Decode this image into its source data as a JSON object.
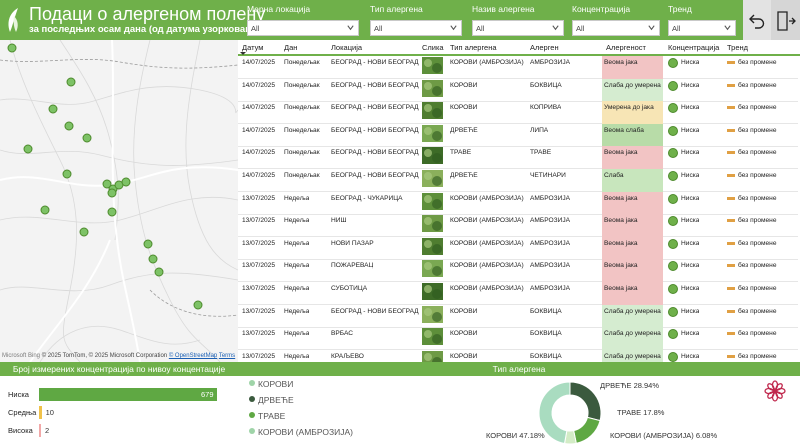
{
  "header": {
    "title": "Подаци о алергеном полену",
    "subtitle": "за последњих осам дана (од датума узорковања)"
  },
  "filters": [
    {
      "label": "Мерна локација",
      "value": "All"
    },
    {
      "label": "Тип алергена",
      "value": "All"
    },
    {
      "label": "Назив алергена",
      "value": "All"
    },
    {
      "label": "Концентрација",
      "value": "All"
    },
    {
      "label": "Тренд",
      "value": "All"
    }
  ],
  "map": {
    "attribution": "© 2025 TomTom, © 2025 Microsoft Corporation",
    "openstreetmap": "© OpenStreetMap",
    "terms": "Terms",
    "brand": "Microsoft Bing"
  },
  "table": {
    "columns": [
      "Датум",
      "Дан",
      "Локација",
      "Слика",
      "Тип алергена",
      "Алерген",
      "Алергеност",
      "Концентрација",
      "Тренд"
    ],
    "rows": [
      {
        "date": "14/07/2025",
        "day": "Понедељак",
        "location": "БЕОГРАД - НОВИ БЕОГРАД",
        "type": "КОРОВИ (АМБРОЗИЈА)",
        "allergen": "АМБРОЗИЈА",
        "allergenicity": "Веома јака",
        "aller_color": "#f2c4c4",
        "conc": "Ниска",
        "trend": "без промене"
      },
      {
        "date": "14/07/2025",
        "day": "Понедељак",
        "location": "БЕОГРАД - НОВИ БЕОГРАД",
        "type": "КОРОВИ",
        "allergen": "БОКВИЦА",
        "allergenicity": "Слаба до умерена",
        "aller_color": "#d5ecd0",
        "conc": "Ниска",
        "trend": "без промене"
      },
      {
        "date": "14/07/2025",
        "day": "Понедељак",
        "location": "БЕОГРАД - НОВИ БЕОГРАД",
        "type": "КОРОВИ",
        "allergen": "КОПРИВА",
        "allergenicity": "Умерена до јака",
        "aller_color": "#f7e5b5",
        "conc": "Ниска",
        "trend": "без промене"
      },
      {
        "date": "14/07/2025",
        "day": "Понедељак",
        "location": "БЕОГРАД - НОВИ БЕОГРАД",
        "type": "ДРВЕЋЕ",
        "allergen": "ЛИПА",
        "allergenicity": "Веома слаба",
        "aller_color": "#b8dca8",
        "conc": "Ниска",
        "trend": "без промене"
      },
      {
        "date": "14/07/2025",
        "day": "Понедељак",
        "location": "БЕОГРАД - НОВИ БЕОГРАД",
        "type": "ТРАВЕ",
        "allergen": "ТРАВЕ",
        "allergenicity": "Веома јака",
        "aller_color": "#f2c4c4",
        "conc": "Ниска",
        "trend": "без промене"
      },
      {
        "date": "14/07/2025",
        "day": "Понедељак",
        "location": "БЕОГРАД - НОВИ БЕОГРАД",
        "type": "ДРВЕЋЕ",
        "allergen": "ЧЕТИНАРИ",
        "allergenicity": "Слаба",
        "aller_color": "#c8e6bd",
        "conc": "Ниска",
        "trend": "без промене"
      },
      {
        "date": "13/07/2025",
        "day": "Недеља",
        "location": "БЕОГРАД - ЧУКАРИЦА",
        "type": "КОРОВИ (АМБРОЗИЈА)",
        "allergen": "АМБРОЗИЈА",
        "allergenicity": "Веома јака",
        "aller_color": "#f2c4c4",
        "conc": "Ниска",
        "trend": "без промене"
      },
      {
        "date": "13/07/2025",
        "day": "Недеља",
        "location": "НИШ",
        "type": "КОРОВИ (АМБРОЗИЈА)",
        "allergen": "АМБРОЗИЈА",
        "allergenicity": "Веома јака",
        "aller_color": "#f2c4c4",
        "conc": "Ниска",
        "trend": "без промене"
      },
      {
        "date": "13/07/2025",
        "day": "Недеља",
        "location": "НОВИ ПАЗАР",
        "type": "КОРОВИ (АМБРОЗИЈА)",
        "allergen": "АМБРОЗИЈА",
        "allergenicity": "Веома јака",
        "aller_color": "#f2c4c4",
        "conc": "Ниска",
        "trend": "без промене"
      },
      {
        "date": "13/07/2025",
        "day": "Недеља",
        "location": "ПОЖАРЕВАЦ",
        "type": "КОРОВИ (АМБРОЗИЈА)",
        "allergen": "АМБРОЗИЈА",
        "allergenicity": "Веома јака",
        "aller_color": "#f2c4c4",
        "conc": "Ниска",
        "trend": "без промене"
      },
      {
        "date": "13/07/2025",
        "day": "Недеља",
        "location": "СУБОТИЦА",
        "type": "КОРОВИ (АМБРОЗИЈА)",
        "allergen": "АМБРОЗИЈА",
        "allergenicity": "Веома јака",
        "aller_color": "#f2c4c4",
        "conc": "Ниска",
        "trend": "без промене"
      },
      {
        "date": "13/07/2025",
        "day": "Недеља",
        "location": "БЕОГРАД - НОВИ БЕОГРАД",
        "type": "КОРОВИ",
        "allergen": "БОКВИЦА",
        "allergenicity": "Слаба до умерена",
        "aller_color": "#d5ecd0",
        "conc": "Ниска",
        "trend": "без промене"
      },
      {
        "date": "13/07/2025",
        "day": "Недеља",
        "location": "ВРБАС",
        "type": "КОРОВИ",
        "allergen": "БОКВИЦА",
        "allergenicity": "Слаба до умерена",
        "aller_color": "#d5ecd0",
        "conc": "Ниска",
        "trend": "без промене"
      },
      {
        "date": "13/07/2025",
        "day": "Недеља",
        "location": "КРАЉЕВО",
        "type": "КОРОВИ",
        "allergen": "БОКВИЦА",
        "allergenicity": "Слаба до умерена",
        "aller_color": "#d5ecd0",
        "conc": "Ниска",
        "trend": "без промене"
      }
    ]
  },
  "bottom": {
    "bar_title": "Број измерених концентрација по нивоу концентације",
    "donut_title": "Тип алергена",
    "legend": [
      {
        "label": "КОРОВИ",
        "color": "#9fd4a8"
      },
      {
        "label": "ДРВЕЋЕ",
        "color": "#3b5a3e"
      },
      {
        "label": "ТРАВЕ",
        "color": "#5fa843"
      },
      {
        "label": "КОРОВИ (АМБРОЗИЈА)",
        "color": "#9fd4a8"
      }
    ]
  },
  "chart_data": [
    {
      "type": "bar",
      "title": "Број измерених концентрација по нивоу концентације",
      "categories": [
        "Ниска",
        "Средња",
        "Висока"
      ],
      "values": [
        679,
        10,
        2
      ],
      "colors": [
        "#5fa843",
        "#f0c24a",
        "#f2a8a8"
      ]
    },
    {
      "type": "pie",
      "title": "Тип алергена",
      "categories": [
        "КОРОВИ",
        "ДРВЕЋЕ",
        "ТРАВЕ",
        "КОРОВИ (АМБРОЗИЈА)"
      ],
      "values": [
        47.18,
        28.94,
        17.8,
        6.08
      ],
      "labels": [
        "КОРОВИ 47.18%",
        "ДРВЕЋЕ 28.94%",
        "ТРАВЕ 17.8%",
        "КОРОВИ (АМБРОЗИЈА) 6.08%"
      ],
      "colors": [
        "#a9dcc0",
        "#3b5a3e",
        "#5fa843",
        "#d3ecc6"
      ]
    }
  ]
}
